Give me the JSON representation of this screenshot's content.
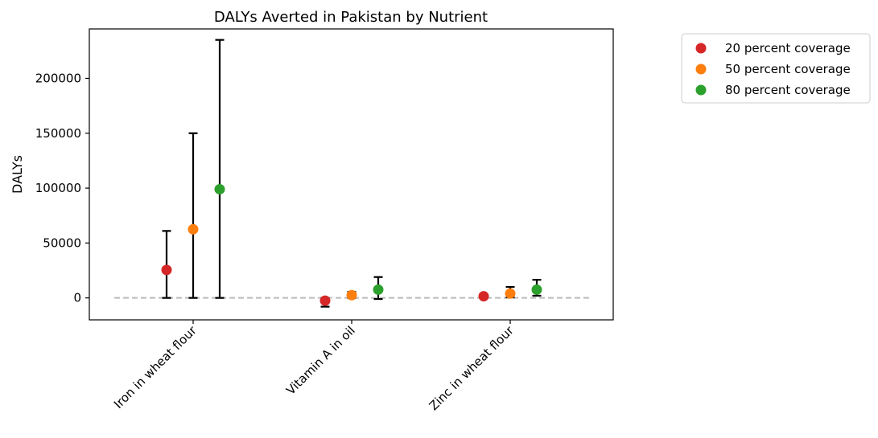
{
  "chart_data": {
    "type": "scatter",
    "title": "DALYs Averted in Pakistan by Nutrient",
    "xlabel": "",
    "ylabel": "DALYs",
    "categories": [
      "Iron in wheat flour",
      "Vitamin A in oil",
      "Zinc in wheat flour"
    ],
    "ylim": [
      -20000,
      245000
    ],
    "yticks": [
      0,
      50000,
      100000,
      150000,
      200000
    ],
    "ytick_labels": [
      "0",
      "50000",
      "100000",
      "150000",
      "200000"
    ],
    "reference_line": {
      "y": 0,
      "style": "dashed",
      "color": "#bbbbbb"
    },
    "legend_position": "outside-top-right",
    "grid": false,
    "series": [
      {
        "name": "20 percent coverage",
        "color": "#d62728",
        "values": [
          25500,
          -2500,
          1500
        ],
        "lower": [
          0,
          -8000,
          0
        ],
        "upper": [
          61000,
          0,
          3000
        ]
      },
      {
        "name": "50 percent coverage",
        "color": "#ff7f0e",
        "values": [
          62500,
          2500,
          4000
        ],
        "lower": [
          0,
          0,
          500
        ],
        "upper": [
          150000,
          5500,
          10000
        ]
      },
      {
        "name": "80 percent coverage",
        "color": "#2ca02c",
        "values": [
          99000,
          7500,
          7500
        ],
        "lower": [
          0,
          -1000,
          2000
        ],
        "upper": [
          235000,
          19000,
          16500
        ]
      }
    ]
  }
}
